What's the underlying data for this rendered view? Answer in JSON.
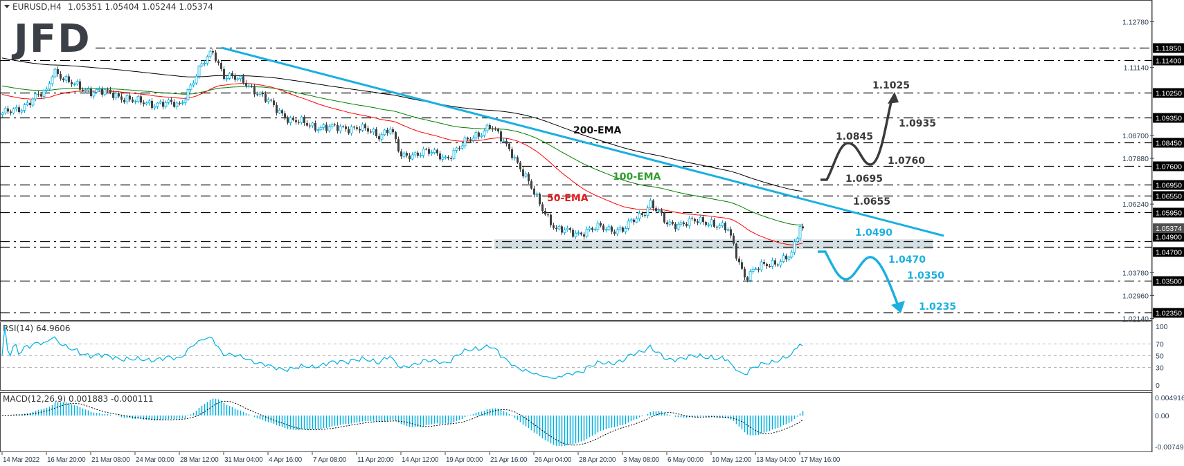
{
  "header": {
    "symbol": "EURUSD,H4",
    "ohlc": "1.05351 1.05404 1.05244 1.05374",
    "menu_icon": "triangle-down-icon"
  },
  "logo": {
    "text": "JFD"
  },
  "colors": {
    "bull": "#00b0e0",
    "bear": "#404040",
    "trendline": "#1ab0e0",
    "ema50": "#ff0000",
    "ema100": "#008000",
    "ema200": "#000000",
    "zone": "#d3dfe3",
    "annotation_dark": "#3a3a3a",
    "annotation_blue": "#1ab0e0",
    "rsi": "#00b0e0",
    "macd": "#00b0e0"
  },
  "chart_data": [
    {
      "type": "candlestick",
      "title": "EURUSD,H4",
      "current_price": "1.05374",
      "approx_close_path": [
        [
          "2022-03-14 00:00",
          1.0945
        ],
        [
          "2022-03-15 08:00",
          1.0975
        ],
        [
          "2022-03-16 20:00",
          1.103
        ],
        [
          "2022-03-17 12:00",
          1.111
        ],
        [
          "2022-03-18 22:00",
          1.106
        ],
        [
          "2022-03-21 08:00",
          1.103
        ],
        [
          "2022-03-22 16:00",
          1.102
        ],
        [
          "2022-03-24 00:00",
          1.099
        ],
        [
          "2022-03-26 06:00",
          1.0985
        ],
        [
          "2022-03-28 12:00",
          1.098
        ],
        [
          "2022-03-29 20:00",
          1.112
        ],
        [
          "2022-03-30 12:00",
          1.1175
        ],
        [
          "2022-03-31 04:00",
          1.1085
        ],
        [
          "2022-04-02 10:00",
          1.106
        ],
        [
          "2022-04-04 16:00",
          1.099
        ],
        [
          "2022-04-06 00:00",
          1.0925
        ],
        [
          "2022-04-07 08:00",
          1.0905
        ],
        [
          "2022-04-09 14:00",
          1.0895
        ],
        [
          "2022-04-11 20:00",
          1.09
        ],
        [
          "2022-04-13 04:00",
          1.087
        ],
        [
          "2022-04-13 20:00",
          1.09
        ],
        [
          "2022-04-14 12:00",
          1.079
        ],
        [
          "2022-04-16 18:00",
          1.0815
        ],
        [
          "2022-04-19 00:00",
          1.079
        ],
        [
          "2022-04-20 08:00",
          1.085
        ],
        [
          "2022-04-21 16:00",
          1.0905
        ],
        [
          "2022-04-23 22:00",
          1.081
        ],
        [
          "2022-04-26 04:00",
          1.066
        ],
        [
          "2022-04-27 12:00",
          1.053
        ],
        [
          "2022-04-28 20:00",
          1.052
        ],
        [
          "2022-05-01 02:00",
          1.054
        ],
        [
          "2022-05-03 08:00",
          1.053
        ],
        [
          "2022-05-04 16:00",
          1.06
        ],
        [
          "2022-05-05 00:00",
          1.063
        ],
        [
          "2022-05-06 00:00",
          1.055
        ],
        [
          "2022-05-08 06:00",
          1.056
        ],
        [
          "2022-05-10 12:00",
          1.056
        ],
        [
          "2022-05-11 12:00",
          1.053
        ],
        [
          "2022-05-11 20:00",
          1.047
        ],
        [
          "2022-05-12 12:00",
          1.0365
        ],
        [
          "2022-05-13 04:00",
          1.039
        ],
        [
          "2022-05-15 10:00",
          1.042
        ],
        [
          "2022-05-16 20:00",
          1.044
        ],
        [
          "2022-05-17 08:00",
          1.05
        ],
        [
          "2022-05-17 16:00",
          1.0545
        ],
        [
          "2022-05-18 04:00",
          1.0537
        ]
      ],
      "ema_labels": [
        {
          "text": "200-EMA",
          "period": 200,
          "color": "#000000"
        },
        {
          "text": "100-EMA",
          "period": 100,
          "color": "#008000"
        },
        {
          "text": "50-EMA",
          "period": 50,
          "color": "#ff0000"
        }
      ],
      "trendline": {
        "from": [
          "2022-03-31 00:00",
          1.1185
        ],
        "color": "#1ab0e0"
      },
      "support_zone": [
        1.047,
        1.049
      ],
      "levels": [
        "1.11850",
        "1.11400",
        "1.10250",
        "1.09350",
        "1.08450",
        "1.07600",
        "1.06950",
        "1.06550",
        "1.05950",
        "1.04900",
        "1.04700",
        "1.03500",
        "1.02350"
      ],
      "y_ticks": [
        "1.12780",
        "1.11140",
        "1.08700",
        "1.07880",
        "1.06240",
        "1.03780",
        "1.02960",
        "1.02140"
      ],
      "x_ticks": [
        "14 Mar 2022",
        "16 Mar 20:00",
        "21 Mar 08:00",
        "24 Mar 00:00",
        "28 Mar 12:00",
        "31 Mar 04:00",
        "4 Apr 16:00",
        "7 Apr 08:00",
        "11 Apr 20:00",
        "14 Apr 12:00",
        "19 Apr 00:00",
        "21 Apr 16:00",
        "26 Apr 04:00",
        "28 Apr 20:00",
        "3 May 08:00",
        "6 May 00:00",
        "10 May 12:00",
        "13 May 04:00",
        "17 May 16:00"
      ],
      "annotations": {
        "bullish": [
          "1.1025",
          "1.0935",
          "1.0845",
          "1.0760",
          "1.0695",
          "1.0655"
        ],
        "bearish": [
          "1.0490",
          "1.0470",
          "1.0350",
          "1.0235"
        ]
      }
    },
    {
      "type": "line",
      "title": "RSI(14) 64.9606",
      "y_ticks": [
        "100",
        "70",
        "50",
        "30",
        "0"
      ],
      "levels": [
        70,
        50,
        30
      ],
      "ylim": [
        0,
        100
      ]
    },
    {
      "type": "bar",
      "title": "MACD(12,26,9) 0.001883 -0.000111",
      "y_ticks": [
        "0.004916",
        "0.00",
        "-0.00749"
      ],
      "ylim": [
        -0.00749,
        0.004916
      ]
    }
  ]
}
